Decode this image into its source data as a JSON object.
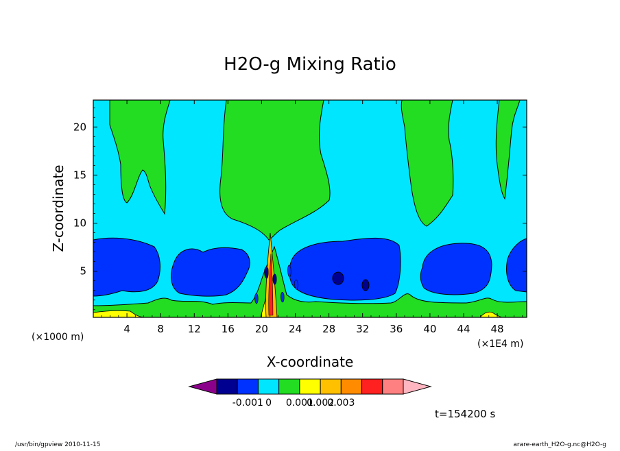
{
  "chart_data": {
    "type": "contour",
    "title": "H2O-g Mixing Ratio",
    "xlabel": "X-coordinate",
    "ylabel": "Z-coordinate",
    "x_unit": "(×1E4 m)",
    "y_unit": "(×1000 m)",
    "xlim": [
      0,
      51.5
    ],
    "ylim": [
      0.2,
      22.8
    ],
    "x_ticks": [
      "4",
      "8",
      "12",
      "16",
      "20",
      "24",
      "28",
      "32",
      "36",
      "40",
      "44",
      "48"
    ],
    "y_ticks": [
      "5",
      "10",
      "15",
      "20"
    ],
    "time_label": "t=154200 s",
    "colorbar": {
      "colors": [
        "#8b008b",
        "#000090",
        "#0032ff",
        "#00e6ff",
        "#22dd22",
        "#ffff00",
        "#ffc000",
        "#ff8c00",
        "#ff2020",
        "#ff8080",
        "#ffb6c1"
      ],
      "tick_labels": [
        "-0.001",
        "0",
        "0.001",
        "0.002",
        "0.003"
      ]
    },
    "colors": {
      "background_field": "#00e6ff",
      "positive_anomaly": "#22dd22",
      "negative_anomaly": "#0032ff",
      "strong_negative": "#000090",
      "surface_high": "#ffff00"
    },
    "grid": false
  },
  "footer": {
    "left": "/usr/bin/gpview   2010-11-15",
    "right": "arare-earth_H2O-g.nc@H2O-g"
  }
}
